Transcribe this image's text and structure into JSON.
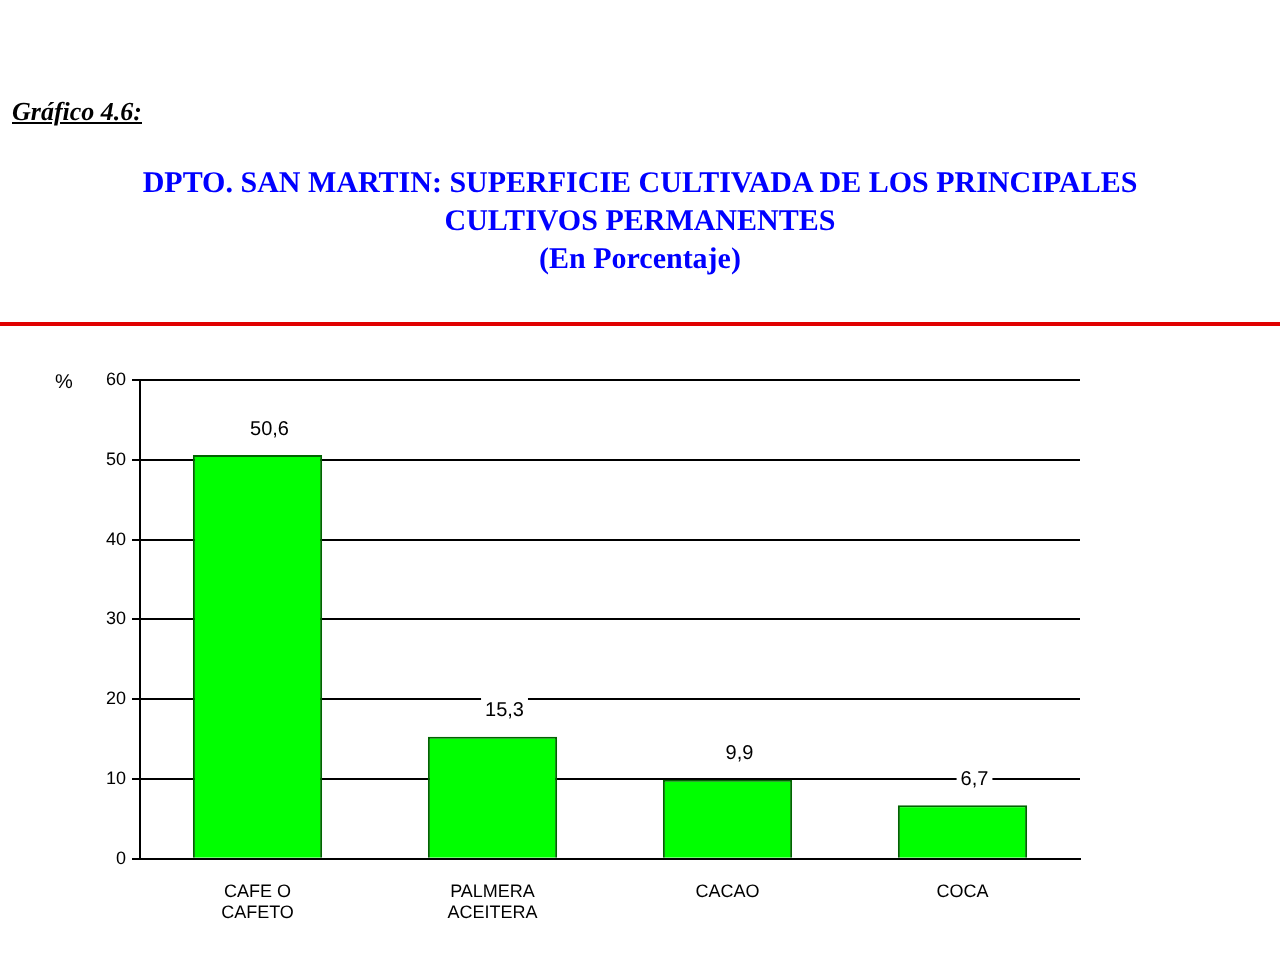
{
  "chart_data": {
    "type": "bar",
    "title": "DPTO. SAN MARTIN: SUPERFICIE CULTIVADA DE LOS PRINCIPALES CULTIVOS PERMANENTES",
    "subtitle": "(En Porcentaje)",
    "ylabel": "%",
    "annotations": [
      "Gráfico 4.6:"
    ],
    "categories": [
      "CAFE O CAFETO",
      "PALMERA ACEITERA",
      "CACAO",
      "COCA"
    ],
    "values": [
      50.6,
      15.3,
      9.9,
      6.7
    ],
    "value_labels": [
      "50,6",
      "15,3",
      "9,9",
      "6,7"
    ],
    "color": "#00ff00",
    "ylim": [
      0,
      60
    ],
    "yticks": [
      0,
      10,
      20,
      30,
      40,
      50,
      60
    ],
    "grid": "y",
    "legend": false
  }
}
